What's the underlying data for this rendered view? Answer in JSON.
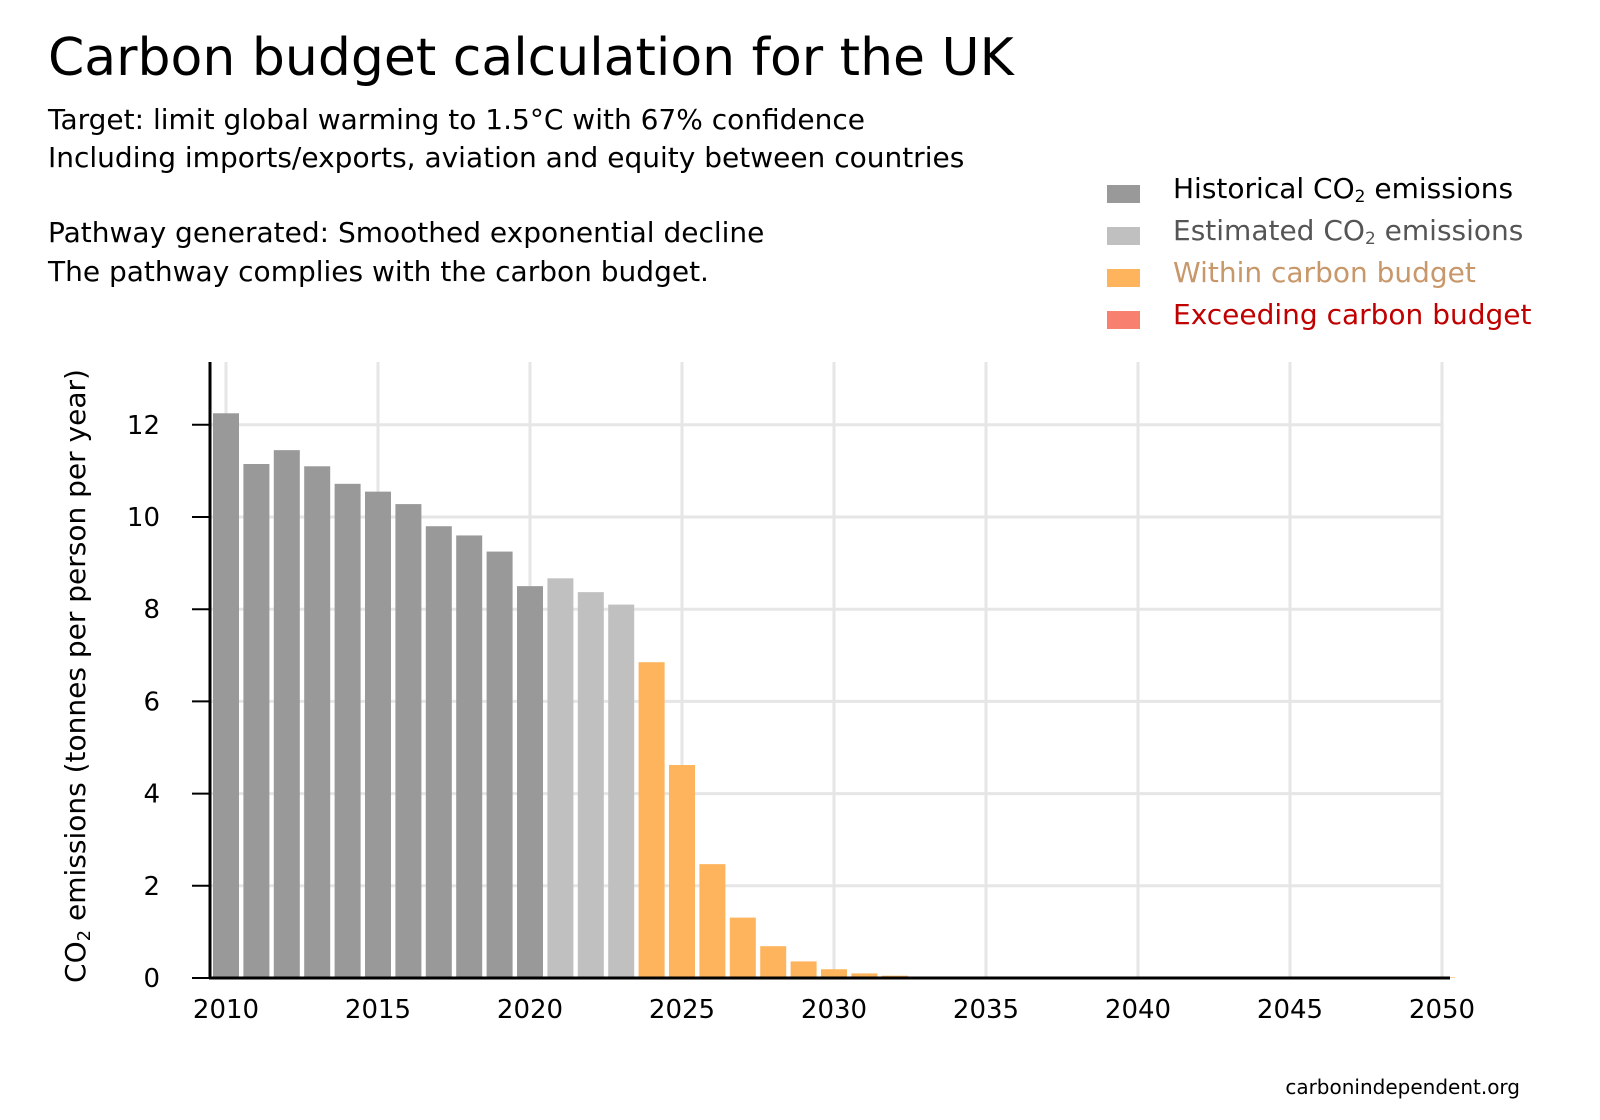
{
  "title": "Carbon budget calculation for the UK",
  "subtitle_lines": [
    "Target: limit global warming to 1.5°C with 67% confidence",
    "Including imports/exports, aviation and equity between countries",
    "Pathway generated: Smoothed exponential decline",
    "The pathway complies with the carbon budget."
  ],
  "legend": [
    {
      "pre": "Historical CO",
      "sub": "2",
      "post": " emissions",
      "color": "#999999",
      "text_color": "#000000"
    },
    {
      "pre": "Estimated CO",
      "sub": "2",
      "post": " emissions",
      "color": "#c0c0c0",
      "text_color": "#555555"
    },
    {
      "pre": "Within carbon budget",
      "sub": "",
      "post": "",
      "color": "#fdb45c",
      "text_color": "#c8976a"
    },
    {
      "pre": "Exceeding carbon budget",
      "sub": "",
      "post": "",
      "color": "#f8806e",
      "text_color": "#c00000"
    }
  ],
  "credit": "carbonindependent.org",
  "chart_data": {
    "type": "bar",
    "title": "Carbon budget calculation for the UK",
    "ylabel_parts": {
      "pre": "CO",
      "sub": "2",
      "post": " emissions (tonnes per person per year)"
    },
    "xlim": [
      2009.5,
      2050.5
    ],
    "ylim": [
      0,
      13.2
    ],
    "x_ticks": [
      "2010",
      "2015",
      "2020",
      "2025",
      "2030",
      "2035",
      "2040",
      "2045",
      "2050"
    ],
    "y_ticks": [
      "0",
      "2",
      "4",
      "6",
      "8",
      "10",
      "12"
    ],
    "grid": true,
    "legend_position": "top-right",
    "series": [
      {
        "name": "Historical CO2 emissions",
        "color": "#999999",
        "x": [
          2010,
          2011,
          2012,
          2013,
          2014,
          2015,
          2016,
          2017,
          2018,
          2019,
          2020
        ],
        "values": [
          12.25,
          11.15,
          11.45,
          11.1,
          10.72,
          10.55,
          10.28,
          9.8,
          9.6,
          9.25,
          8.5
        ]
      },
      {
        "name": "Estimated CO2 emissions",
        "color": "#c0c0c0",
        "x": [
          2021,
          2022,
          2023
        ],
        "values": [
          8.67,
          8.37,
          8.1
        ]
      },
      {
        "name": "Within carbon budget",
        "color": "#fdb45c",
        "x": [
          2024,
          2025,
          2026,
          2027,
          2028,
          2029,
          2030,
          2031,
          2032,
          2033,
          2034,
          2035,
          2036,
          2037,
          2038,
          2039,
          2040,
          2041,
          2042,
          2043,
          2044,
          2045,
          2046,
          2047,
          2048,
          2049,
          2050
        ],
        "values": [
          6.85,
          4.62,
          2.47,
          1.31,
          0.69,
          0.36,
          0.19,
          0.1,
          0.05,
          0.03,
          0.02,
          0.01,
          0.01,
          0.0,
          0.0,
          0.0,
          0.0,
          0.0,
          0.0,
          0.0,
          0.0,
          0.0,
          0.0,
          0.0,
          0.0,
          0.0,
          0.0
        ]
      },
      {
        "name": "Exceeding carbon budget",
        "color": "#f8806e",
        "x": [],
        "values": []
      }
    ]
  }
}
